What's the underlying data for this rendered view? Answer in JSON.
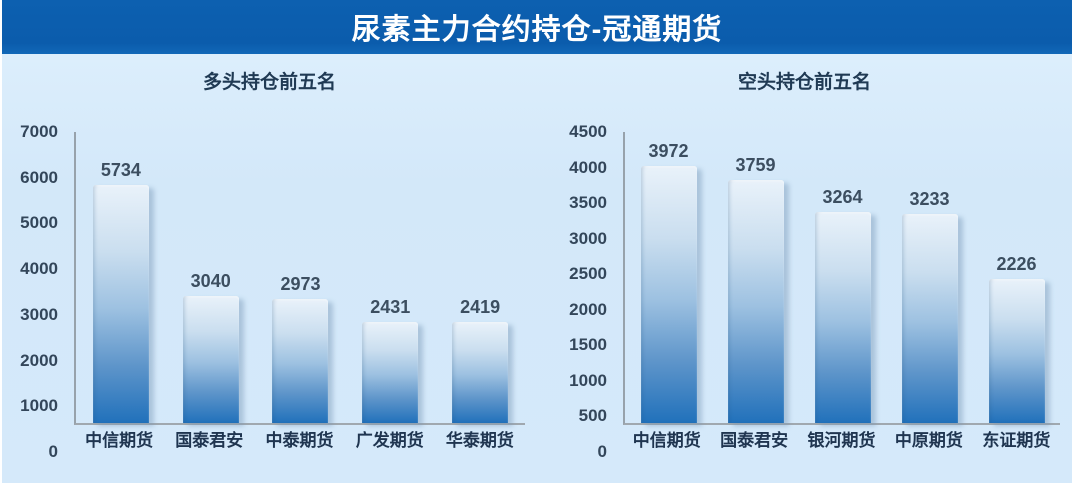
{
  "header": {
    "title": "尿素主力合约持仓-冠通期货"
  },
  "colors": {
    "header_bg": "#0b5cac",
    "header_text": "#ffffff",
    "area_bg": "#d5e9fa",
    "bar_gradient_top": "#e9f2fa",
    "bar_gradient_bottom": "#2171bb",
    "axis_line": "#97a2ab",
    "tick_label": "#33465a",
    "value_label": "#3c4e60",
    "category_label": "#1f3550",
    "chart_title": "#203a54"
  },
  "chart_data": [
    {
      "type": "bar",
      "title": "多头持仓前五名",
      "categories": [
        "中信期货",
        "国泰君安",
        "中泰期货",
        "广发期货",
        "华泰期货"
      ],
      "values": [
        5734,
        3040,
        2973,
        2431,
        2419
      ],
      "xlabel": "",
      "ylabel": "",
      "ylim": [
        0,
        7000
      ],
      "ytick_step": 1000,
      "grid": false,
      "legend": false,
      "data_labels": true
    },
    {
      "type": "bar",
      "title": "空头持仓前五名",
      "categories": [
        "中信期货",
        "国泰君安",
        "银河期货",
        "中原期货",
        "东证期货"
      ],
      "values": [
        3972,
        3759,
        3264,
        3233,
        2226
      ],
      "xlabel": "",
      "ylabel": "",
      "ylim": [
        0,
        4500
      ],
      "ytick_step": 500,
      "grid": false,
      "legend": false,
      "data_labels": true
    }
  ]
}
